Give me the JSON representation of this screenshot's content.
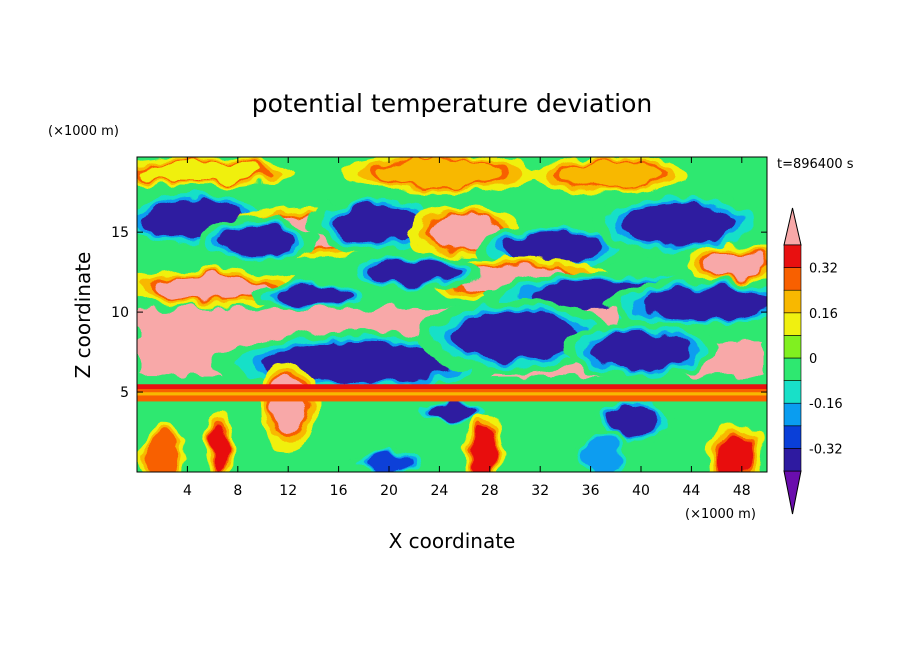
{
  "chart_data": {
    "type": "heatmap",
    "title": "potential temperature deviation",
    "xlabel": "X coordinate",
    "ylabel": "Z coordinate",
    "x_unit": "(×1000 m)",
    "y_unit": "(×1000 m)",
    "time_label": "t=896400 s",
    "xlim": [
      0,
      50
    ],
    "ylim": [
      0,
      19.7
    ],
    "x_ticks": [
      4,
      8,
      12,
      16,
      20,
      24,
      28,
      32,
      36,
      40,
      44,
      48
    ],
    "y_ticks": [
      5,
      10,
      15
    ],
    "colorbar": {
      "levels": [
        -0.4,
        -0.32,
        -0.24,
        -0.16,
        -0.08,
        0,
        0.08,
        0.16,
        0.24,
        0.32,
        0.4
      ],
      "labels": [
        "0.32",
        "0.16",
        "0",
        "-0.16",
        "-0.32"
      ],
      "label_values": [
        0.32,
        0.16,
        0,
        -0.16,
        -0.32
      ],
      "colors_low_to_high": [
        "#6a0dad",
        "#2e1aa0",
        "#0a3fd8",
        "#0a9df0",
        "#18e0c8",
        "#2ee870",
        "#80f020",
        "#f0f010",
        "#f8b800",
        "#f86000",
        "#e81010",
        "#f8a8a8"
      ],
      "extend": "both"
    },
    "bands": [
      {
        "z": 5.3,
        "color": "#e81010"
      },
      {
        "z": 5.0,
        "color": "#f86000"
      },
      {
        "z": 4.8,
        "color": "#f8b800"
      },
      {
        "z": 4.6,
        "color": "#f86000"
      }
    ],
    "features": [
      {
        "shape": "ellipse",
        "cx": 4.5,
        "cz": 15.8,
        "rx": 4.0,
        "rz": 1.2,
        "level": -0.4
      },
      {
        "shape": "ellipse",
        "cx": 14.0,
        "cz": 15.0,
        "rx": 4.5,
        "rz": 1.0,
        "level": 0.4
      },
      {
        "shape": "ellipse",
        "cx": 9.5,
        "cz": 14.5,
        "rx": 3.0,
        "rz": 0.9,
        "level": -0.4
      },
      {
        "shape": "ellipse",
        "cx": 19.0,
        "cz": 15.5,
        "rx": 3.5,
        "rz": 1.2,
        "level": -0.4
      },
      {
        "shape": "ellipse",
        "cx": 26.0,
        "cz": 15.0,
        "rx": 3.0,
        "rz": 1.0,
        "level": 0.4
      },
      {
        "shape": "ellipse",
        "cx": 33.0,
        "cz": 14.0,
        "rx": 4.0,
        "rz": 1.0,
        "level": -0.4
      },
      {
        "shape": "ellipse",
        "cx": 43.0,
        "cz": 15.5,
        "rx": 4.5,
        "rz": 1.3,
        "level": -0.4
      },
      {
        "shape": "ellipse",
        "cx": 47.5,
        "cz": 13.0,
        "rx": 2.5,
        "rz": 0.8,
        "level": 0.4
      },
      {
        "shape": "ellipse",
        "cx": 30.0,
        "cz": 12.0,
        "rx": 5.0,
        "rz": 0.9,
        "level": 0.4
      },
      {
        "shape": "ellipse",
        "cx": 37.0,
        "cz": 11.0,
        "rx": 6.0,
        "rz": 1.0,
        "level": -0.4
      },
      {
        "shape": "ellipse",
        "cx": 45.0,
        "cz": 10.5,
        "rx": 5.0,
        "rz": 1.0,
        "level": -0.4
      },
      {
        "shape": "ellipse",
        "cx": 22.0,
        "cz": 12.5,
        "rx": 3.5,
        "rz": 0.8,
        "level": -0.4
      },
      {
        "shape": "ellipse",
        "cx": 6.0,
        "cz": 11.5,
        "rx": 4.5,
        "rz": 0.8,
        "level": 0.4
      },
      {
        "shape": "ellipse",
        "cx": 14.0,
        "cz": 11.0,
        "rx": 3.0,
        "rz": 0.6,
        "level": -0.4
      },
      {
        "shape": "rect",
        "x0": 0,
        "x1": 38.0,
        "z0": 6.0,
        "z1": 10.2,
        "level": 0.4
      },
      {
        "shape": "rect",
        "x0": 38.0,
        "x1": 50.0,
        "z0": 6.0,
        "z1": 8.2,
        "level": 0.4
      },
      {
        "shape": "ellipse",
        "cx": 17.5,
        "cz": 6.8,
        "rx": 7.5,
        "rz": 1.3,
        "level": -0.4
      },
      {
        "shape": "ellipse",
        "cx": 12.0,
        "cz": 4.2,
        "rx": 1.5,
        "rz": 1.8,
        "level": 0.4
      },
      {
        "shape": "ellipse",
        "cx": 30.0,
        "cz": 8.5,
        "rx": 5.0,
        "rz": 1.5,
        "level": -0.4
      },
      {
        "shape": "ellipse",
        "cx": 40.0,
        "cz": 7.6,
        "rx": 4.0,
        "rz": 1.2,
        "level": -0.4
      },
      {
        "shape": "ellipse",
        "cx": 25.0,
        "cz": 3.8,
        "rx": 2.0,
        "rz": 0.5,
        "level": -0.4
      },
      {
        "shape": "ellipse",
        "cx": 39.5,
        "cz": 3.2,
        "rx": 2.0,
        "rz": 1.0,
        "level": -0.4
      },
      {
        "shape": "ellipse",
        "cx": 6.5,
        "cz": 1.5,
        "rx": 0.8,
        "rz": 1.5,
        "level": 0.32
      },
      {
        "shape": "ellipse",
        "cx": 2.0,
        "cz": 1.0,
        "rx": 1.2,
        "rz": 1.2,
        "level": 0.24
      },
      {
        "shape": "ellipse",
        "cx": 27.5,
        "cz": 1.3,
        "rx": 1.0,
        "rz": 1.5,
        "level": 0.32
      },
      {
        "shape": "ellipse",
        "cx": 47.5,
        "cz": 1.2,
        "rx": 1.5,
        "rz": 1.2,
        "level": 0.32
      },
      {
        "shape": "ellipse",
        "cx": 20.0,
        "cz": 0.6,
        "rx": 2.0,
        "rz": 0.6,
        "level": -0.32
      },
      {
        "shape": "ellipse",
        "cx": 37.0,
        "cz": 1.0,
        "rx": 1.5,
        "rz": 1.0,
        "level": -0.24
      },
      {
        "shape": "ellipse",
        "cx": 24.0,
        "cz": 18.7,
        "rx": 5.0,
        "rz": 0.8,
        "level": 0.16
      },
      {
        "shape": "ellipse",
        "cx": 37.5,
        "cz": 18.6,
        "rx": 4.0,
        "rz": 0.8,
        "level": 0.16
      },
      {
        "shape": "ellipse",
        "cx": 5.0,
        "cz": 18.8,
        "rx": 5.0,
        "rz": 0.6,
        "level": 0.08
      }
    ]
  }
}
